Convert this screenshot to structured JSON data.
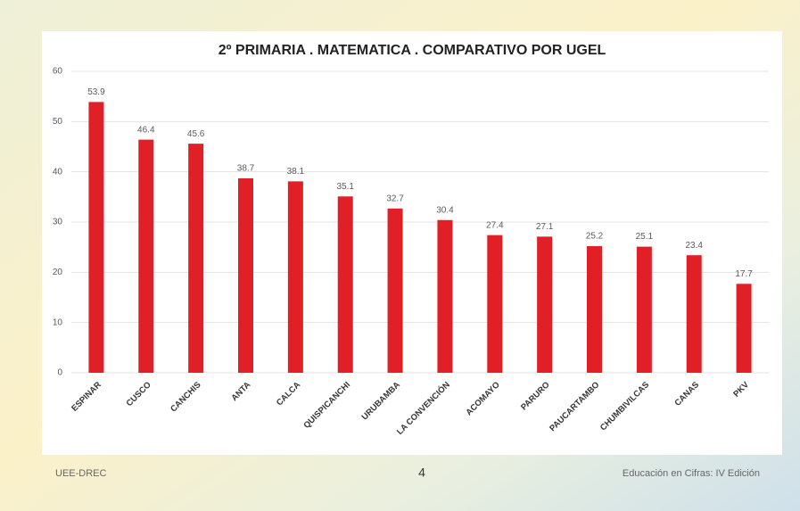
{
  "chart_data": {
    "type": "bar",
    "title": "2º PRIMARIA . MATEMATICA . COMPARATIVO POR UGEL",
    "categories": [
      "ESPINAR",
      "CUSCO",
      "CANCHIS",
      "ANTA",
      "CALCA",
      "QUISPICANCHI",
      "URUBAMBA",
      "LA CONVENCIÓN",
      "ACOMAYO",
      "PARURO",
      "PAUCARTAMBO",
      "CHUMBIVILCAS",
      "CANAS",
      "PKV"
    ],
    "values": [
      53.9,
      46.4,
      45.6,
      38.7,
      38.1,
      35.1,
      32.7,
      30.4,
      27.4,
      27.1,
      25.2,
      25.1,
      23.4,
      17.7
    ],
    "color": "#e01f26",
    "ylim": [
      0,
      60
    ],
    "yticks": [
      0,
      10,
      20,
      30,
      40,
      50,
      60
    ],
    "grid": true
  },
  "footer": {
    "left": "UEE-DREC",
    "center": "4",
    "right": "Educación en Cifras: IV Edición"
  }
}
